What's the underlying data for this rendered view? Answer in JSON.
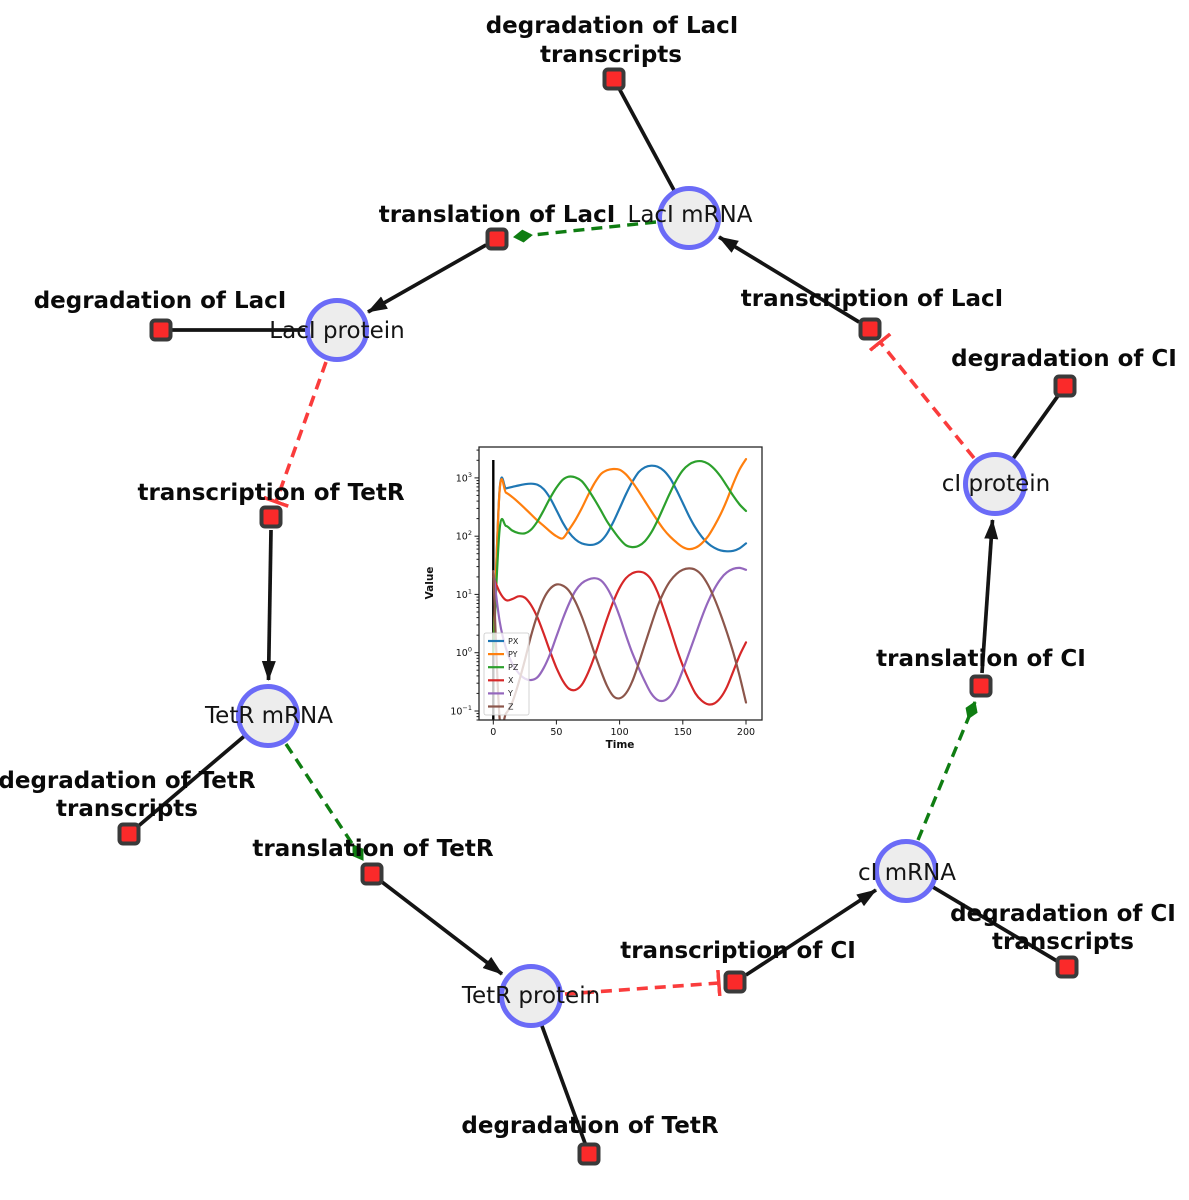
{
  "network": {
    "species": [
      {
        "label": "LacI mRNA"
      },
      {
        "label": "LacI protein"
      },
      {
        "label": "TetR mRNA"
      },
      {
        "label": "TetR protein"
      },
      {
        "label": "cI mRNA"
      },
      {
        "label": "cI protein"
      }
    ],
    "reactions": [
      {
        "lines": [
          "degradation of LacI",
          "transcripts"
        ]
      },
      {
        "lines": [
          "translation of LacI"
        ]
      },
      {
        "lines": [
          "degradation of LacI"
        ]
      },
      {
        "lines": [
          "transcription of LacI"
        ]
      },
      {
        "lines": [
          "degradation of CI"
        ]
      },
      {
        "lines": [
          "transcription of TetR"
        ]
      },
      {
        "lines": [
          "degradation of TetR",
          "transcripts"
        ]
      },
      {
        "lines": [
          "translation of TetR"
        ]
      },
      {
        "lines": [
          "degradation of TetR"
        ]
      },
      {
        "lines": [
          "transcription of CI"
        ]
      },
      {
        "lines": [
          "degradation of CI",
          "transcripts"
        ]
      },
      {
        "lines": [
          "translation of CI"
        ]
      }
    ],
    "interactions": [
      {
        "source": "LacI mRNA",
        "target": "degradation of LacI transcripts",
        "type": "reactant"
      },
      {
        "source": "LacI mRNA",
        "target": "translation of LacI",
        "type": "modifier"
      },
      {
        "source": "translation of LacI",
        "target": "LacI protein",
        "type": "product"
      },
      {
        "source": "LacI protein",
        "target": "degradation of LacI",
        "type": "reactant"
      },
      {
        "source": "LacI protein",
        "target": "transcription of TetR",
        "type": "inhibition"
      },
      {
        "source": "transcription of TetR",
        "target": "TetR mRNA",
        "type": "product"
      },
      {
        "source": "TetR mRNA",
        "target": "degradation of TetR transcripts",
        "type": "reactant"
      },
      {
        "source": "TetR mRNA",
        "target": "translation of TetR",
        "type": "modifier"
      },
      {
        "source": "translation of TetR",
        "target": "TetR protein",
        "type": "product"
      },
      {
        "source": "TetR protein",
        "target": "degradation of TetR",
        "type": "reactant"
      },
      {
        "source": "TetR protein",
        "target": "transcription of CI",
        "type": "inhibition"
      },
      {
        "source": "transcription of CI",
        "target": "cI mRNA",
        "type": "product"
      },
      {
        "source": "cI mRNA",
        "target": "degradation of CI transcripts",
        "type": "reactant"
      },
      {
        "source": "cI mRNA",
        "target": "translation of CI",
        "type": "modifier"
      },
      {
        "source": "translation of CI",
        "target": "cI protein",
        "type": "product"
      },
      {
        "source": "cI protein",
        "target": "degradation of CI",
        "type": "reactant"
      },
      {
        "source": "cI protein",
        "target": "transcription of LacI",
        "type": "inhibition"
      }
    ],
    "colors": {
      "species_fill": "#ededed",
      "species_border": "#6b6bf7",
      "reaction_fill": "#fa2a2a",
      "reaction_border": "#3a3a3a",
      "edge_reaction": "#141414",
      "edge_modifier": "#0f7d12",
      "edge_inhibition": "#fa3c3c"
    }
  },
  "chart_data": {
    "type": "line",
    "title": "",
    "xlabel": "Time",
    "ylabel": "Value",
    "grid": false,
    "x_axis": {
      "ticks": [
        0,
        50,
        100,
        150,
        200
      ]
    },
    "y_axis": {
      "scale": "log",
      "tick_values": [
        1000,
        100,
        10,
        1,
        0.1
      ],
      "tick_exponents": [
        "3",
        "2",
        "1",
        "0",
        "−1"
      ],
      "tick_labels": [
        "10³",
        "10²",
        "10¹",
        "10⁰",
        "10⁻¹"
      ]
    },
    "legend": {
      "position": "lower-left",
      "entries": [
        "PX",
        "PY",
        "PZ",
        "X",
        "Y",
        "Z"
      ]
    },
    "vline_x": 0,
    "x": [
      0,
      5,
      10,
      15,
      20,
      25,
      30,
      35,
      40,
      45,
      50,
      55,
      60,
      65,
      70,
      75,
      80,
      85,
      90,
      95,
      100,
      105,
      110,
      115,
      120,
      125,
      130,
      135,
      140,
      145,
      150,
      155,
      160,
      165,
      170,
      175,
      180,
      185,
      190,
      195,
      200
    ],
    "series": [
      {
        "name": "PX",
        "color": "#1f77b4",
        "values": [
          1,
          620,
          660,
          700,
          740,
          780,
          795,
          760,
          640,
          450,
          280,
          170,
          115,
          88,
          75,
          71,
          72,
          82,
          110,
          175,
          300,
          520,
          850,
          1250,
          1520,
          1620,
          1560,
          1330,
          980,
          620,
          370,
          220,
          140,
          98,
          75,
          63,
          57,
          55,
          56,
          62,
          75
        ]
      },
      {
        "name": "PY",
        "color": "#ff7f0e",
        "values": [
          1,
          600,
          560,
          470,
          380,
          300,
          235,
          185,
          150,
          120,
          100,
          92,
          130,
          190,
          300,
          500,
          800,
          1150,
          1350,
          1420,
          1380,
          1150,
          850,
          590,
          400,
          270,
          185,
          130,
          98,
          78,
          65,
          60,
          63,
          75,
          100,
          150,
          240,
          420,
          800,
          1400,
          2100
        ]
      },
      {
        "name": "PZ",
        "color": "#2ca02c",
        "values": [
          1,
          130,
          150,
          125,
          113,
          112,
          130,
          180,
          280,
          450,
          680,
          930,
          1050,
          1020,
          880,
          640,
          430,
          280,
          180,
          125,
          90,
          70,
          65,
          68,
          82,
          115,
          185,
          320,
          560,
          920,
          1350,
          1700,
          1900,
          1930,
          1750,
          1420,
          1050,
          720,
          490,
          350,
          270
        ]
      },
      {
        "name": "X",
        "color": "#d62728",
        "values": [
          20,
          11,
          8,
          8.3,
          9.3,
          8.8,
          6.5,
          4,
          2.1,
          1.05,
          0.55,
          0.33,
          0.24,
          0.23,
          0.28,
          0.45,
          0.85,
          1.8,
          3.8,
          7.5,
          13,
          19,
          23,
          24.5,
          23,
          18,
          11,
          5.5,
          2.6,
          1.2,
          0.6,
          0.33,
          0.2,
          0.15,
          0.13,
          0.135,
          0.17,
          0.26,
          0.48,
          0.9,
          1.5
        ]
      },
      {
        "name": "Y",
        "color": "#9467bd",
        "values": [
          25,
          3.5,
          1.2,
          0.65,
          0.45,
          0.36,
          0.34,
          0.38,
          0.55,
          0.95,
          1.9,
          3.8,
          7,
          11.5,
          15.5,
          18,
          19,
          17.5,
          13,
          8,
          4.2,
          2,
          1,
          0.55,
          0.32,
          0.2,
          0.155,
          0.15,
          0.18,
          0.27,
          0.5,
          1,
          2,
          4,
          7.5,
          12.5,
          18.5,
          24,
          27.5,
          28.5,
          26.5
        ]
      },
      {
        "name": "Z",
        "color": "#8c564b",
        "values": [
          25,
          0.075,
          0.09,
          0.14,
          0.3,
          0.75,
          2,
          4.5,
          8.5,
          12.5,
          14.8,
          14.2,
          11.5,
          7.5,
          4.2,
          2.1,
          1,
          0.5,
          0.27,
          0.18,
          0.165,
          0.2,
          0.32,
          0.65,
          1.4,
          3,
          6.2,
          11,
          17,
          22.5,
          26.5,
          28,
          26.5,
          21.5,
          14.5,
          8.5,
          4.5,
          2.2,
          1,
          0.4,
          0.14
        ]
      }
    ]
  }
}
